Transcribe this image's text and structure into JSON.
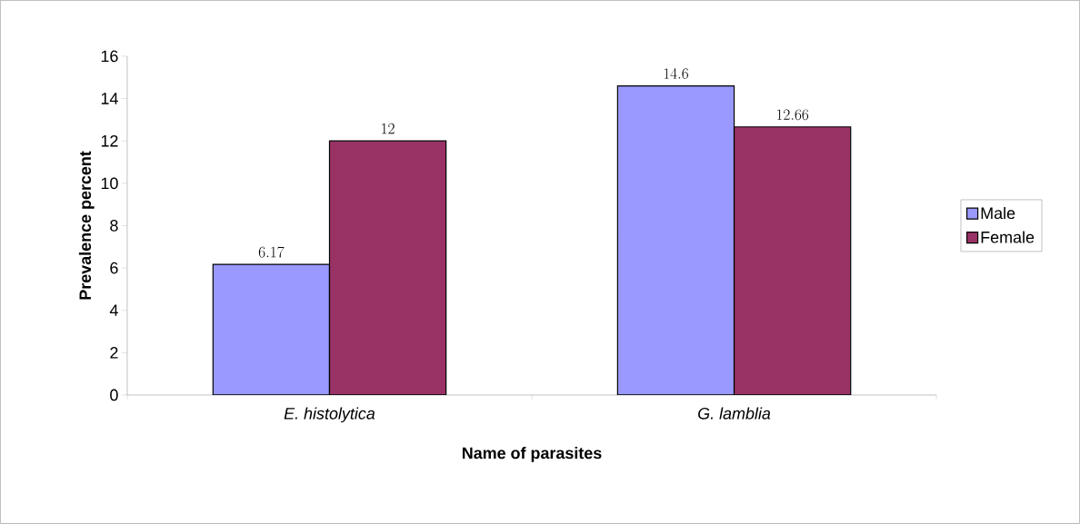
{
  "chart_data": {
    "type": "bar",
    "xlabel": "Name of parasites",
    "ylabel": "Prevalence percent",
    "categories": [
      "E. histolytica",
      "G. lamblia"
    ],
    "series": [
      {
        "name": "Male",
        "color": "#9999ff",
        "values": [
          6.17,
          14.6
        ]
      },
      {
        "name": "Female",
        "color": "#993366",
        "values": [
          12,
          12.66
        ]
      }
    ],
    "ylim": [
      0,
      16
    ],
    "yticks": [
      0,
      2,
      4,
      6,
      8,
      10,
      12,
      14,
      16
    ],
    "data_labels": true,
    "legend": "right",
    "grid": false
  }
}
